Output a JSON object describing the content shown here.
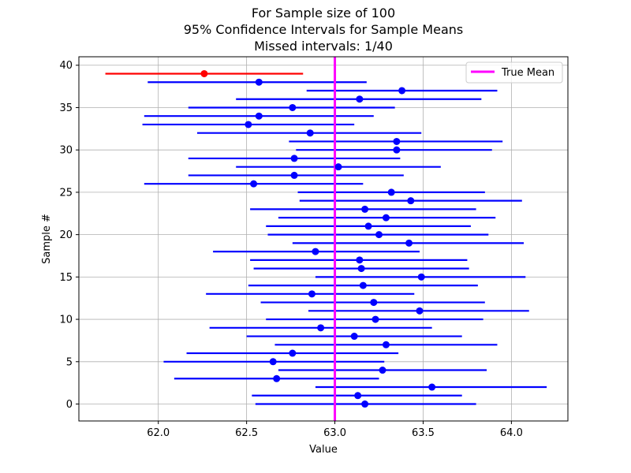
{
  "chart_data": {
    "type": "errorbar",
    "title_lines": [
      "For Sample size of 100",
      "95% Confidence Intervals for Sample Means",
      "Missed intervals: 1/40"
    ],
    "xlabel": "Value",
    "ylabel": "Sample #",
    "xlim": [
      61.55,
      64.32
    ],
    "ylim": [
      -2,
      41
    ],
    "xticks": [
      62.0,
      62.5,
      63.0,
      63.5,
      64.0
    ],
    "xtick_labels": [
      "62.0",
      "62.5",
      "63.0",
      "63.5",
      "64.0"
    ],
    "yticks": [
      0,
      5,
      10,
      15,
      20,
      25,
      30,
      35,
      40
    ],
    "ytick_labels": [
      "0",
      "5",
      "10",
      "15",
      "20",
      "25",
      "30",
      "35",
      "40"
    ],
    "grid": true,
    "true_mean": 63.0,
    "legend": {
      "placement": "top-right",
      "entries": [
        {
          "label": "True Mean",
          "color": "#ff00ff"
        }
      ]
    },
    "colors": {
      "hit": "#0000ff",
      "miss": "#ff0000",
      "true_mean": "#ff00ff",
      "grid": "#b0b0b0"
    },
    "intervals": [
      {
        "sample": 0,
        "mean": 63.17,
        "low": 62.55,
        "high": 63.8
      },
      {
        "sample": 1,
        "mean": 63.13,
        "low": 62.53,
        "high": 63.72
      },
      {
        "sample": 2,
        "mean": 63.55,
        "low": 62.89,
        "high": 64.2
      },
      {
        "sample": 3,
        "mean": 62.67,
        "low": 62.09,
        "high": 63.25
      },
      {
        "sample": 4,
        "mean": 63.27,
        "low": 62.68,
        "high": 63.86
      },
      {
        "sample": 5,
        "mean": 62.65,
        "low": 62.03,
        "high": 63.28
      },
      {
        "sample": 6,
        "mean": 62.76,
        "low": 62.16,
        "high": 63.36
      },
      {
        "sample": 7,
        "mean": 63.29,
        "low": 62.66,
        "high": 63.92
      },
      {
        "sample": 8,
        "mean": 63.11,
        "low": 62.5,
        "high": 63.72
      },
      {
        "sample": 9,
        "mean": 62.92,
        "low": 62.29,
        "high": 63.55
      },
      {
        "sample": 10,
        "mean": 63.23,
        "low": 62.61,
        "high": 63.84
      },
      {
        "sample": 11,
        "mean": 63.48,
        "low": 62.85,
        "high": 64.1
      },
      {
        "sample": 12,
        "mean": 63.22,
        "low": 62.58,
        "high": 63.85
      },
      {
        "sample": 13,
        "mean": 62.87,
        "low": 62.27,
        "high": 63.45
      },
      {
        "sample": 14,
        "mean": 63.16,
        "low": 62.51,
        "high": 63.81
      },
      {
        "sample": 15,
        "mean": 63.49,
        "low": 62.89,
        "high": 64.08
      },
      {
        "sample": 16,
        "mean": 63.15,
        "low": 62.54,
        "high": 63.76
      },
      {
        "sample": 17,
        "mean": 63.14,
        "low": 62.52,
        "high": 63.75
      },
      {
        "sample": 18,
        "mean": 62.89,
        "low": 62.31,
        "high": 63.48
      },
      {
        "sample": 19,
        "mean": 63.42,
        "low": 62.76,
        "high": 64.07
      },
      {
        "sample": 20,
        "mean": 63.25,
        "low": 62.62,
        "high": 63.87
      },
      {
        "sample": 21,
        "mean": 63.19,
        "low": 62.61,
        "high": 63.77
      },
      {
        "sample": 22,
        "mean": 63.29,
        "low": 62.68,
        "high": 63.91
      },
      {
        "sample": 23,
        "mean": 63.17,
        "low": 62.52,
        "high": 63.8
      },
      {
        "sample": 24,
        "mean": 63.43,
        "low": 62.8,
        "high": 64.06
      },
      {
        "sample": 25,
        "mean": 63.32,
        "low": 62.79,
        "high": 63.85
      },
      {
        "sample": 26,
        "mean": 62.54,
        "low": 61.92,
        "high": 63.16
      },
      {
        "sample": 27,
        "mean": 62.77,
        "low": 62.17,
        "high": 63.39
      },
      {
        "sample": 28,
        "mean": 63.02,
        "low": 62.44,
        "high": 63.6
      },
      {
        "sample": 29,
        "mean": 62.77,
        "low": 62.17,
        "high": 63.37
      },
      {
        "sample": 30,
        "mean": 63.35,
        "low": 62.78,
        "high": 63.89
      },
      {
        "sample": 31,
        "mean": 63.35,
        "low": 62.74,
        "high": 63.95
      },
      {
        "sample": 32,
        "mean": 62.86,
        "low": 62.22,
        "high": 63.49
      },
      {
        "sample": 33,
        "mean": 62.51,
        "low": 61.91,
        "high": 63.11
      },
      {
        "sample": 34,
        "mean": 62.57,
        "low": 61.92,
        "high": 63.22
      },
      {
        "sample": 35,
        "mean": 62.76,
        "low": 62.17,
        "high": 63.34
      },
      {
        "sample": 36,
        "mean": 63.14,
        "low": 62.44,
        "high": 63.83
      },
      {
        "sample": 37,
        "mean": 63.38,
        "low": 62.84,
        "high": 63.92
      },
      {
        "sample": 38,
        "mean": 62.57,
        "low": 61.94,
        "high": 63.18
      },
      {
        "sample": 39,
        "mean": 62.26,
        "low": 61.7,
        "high": 62.82
      }
    ]
  }
}
